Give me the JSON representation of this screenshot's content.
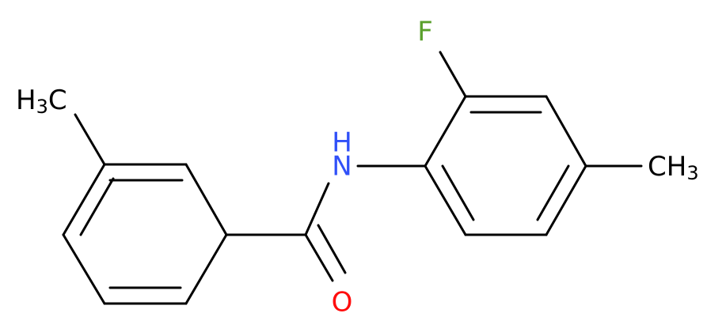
{
  "atoms": {
    "left_methyl": {
      "main": "H",
      "sub": "3",
      "tail": "C"
    },
    "fluorine": "F",
    "nitrogen": "N",
    "nitrogen_h": "H",
    "oxygen": "O",
    "right_methyl": {
      "main": "CH",
      "sub": "3"
    }
  }
}
